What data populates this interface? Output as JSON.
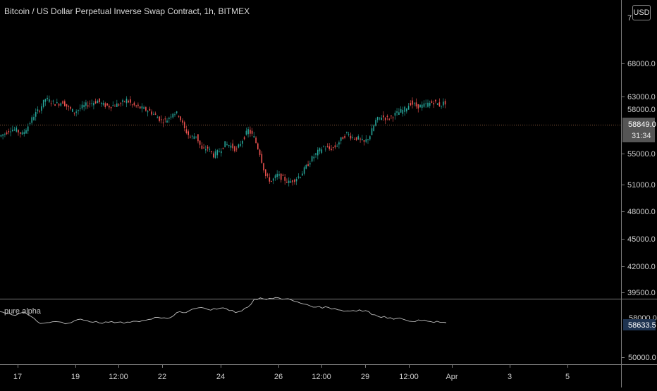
{
  "header": {
    "title": "Bitcoin / US Dollar Perpetual Inverse Swap Contract, 1h, BITMEX",
    "currency_button": "USD"
  },
  "indicator": {
    "label": "pure alpha"
  },
  "price_axis": {
    "ticks": [
      "68000.0",
      "63000.0",
      "58000.0",
      "55000.0",
      "51000.0",
      "48000.0",
      "45000.0",
      "42000.0",
      "39500.0"
    ],
    "top_partial": "7",
    "last_price": "58849.0",
    "countdown": "31:34"
  },
  "indicator_axis": {
    "top_partial": "58000.0",
    "value": "58633.5",
    "bottom_tick": "50000.0"
  },
  "time_axis": {
    "ticks": [
      "17",
      "19",
      "12:00",
      "22",
      "24",
      "26",
      "12:00",
      "29",
      "12:00",
      "Apr",
      "3",
      "5"
    ]
  },
  "colors": {
    "background": "#000000",
    "up": "#26a69a",
    "down": "#ef5350",
    "wick": "#8a8a8a",
    "indicator_line": "#bdbdbd",
    "last_price_line": "#8a5a3a",
    "price_label_bg": "#555555",
    "indicator_label_bg": "#1e3350"
  },
  "chart_data": {
    "type": "line",
    "title": "Bitcoin / US Dollar Perpetual Inverse Swap Contract, 1h, BITMEX",
    "series": [
      {
        "name": "BTCUSD",
        "values": [
          55600,
          55900,
          56300,
          56200,
          55800,
          56600,
          57600,
          58200,
          59200,
          58900,
          58700,
          58900,
          58300,
          57900,
          58300,
          58600,
          58800,
          59000,
          58600,
          58500,
          58600,
          58700,
          59100,
          58600,
          58400,
          58200,
          58000,
          57600,
          57100,
          57200,
          57900,
          57700,
          56300,
          55500,
          55700,
          54300,
          54500,
          53800,
          54200,
          54900,
          54700,
          54300,
          55300,
          56200,
          55500,
          54000,
          51800,
          51300,
          51900,
          51600,
          51200,
          51500,
          51900,
          52700,
          53500,
          54100,
          54600,
          54400,
          54600,
          55300,
          55900,
          55500,
          55400,
          55000,
          55700,
          57100,
          57500,
          57300,
          57600,
          57900,
          58200,
          58800,
          58500,
          58500,
          58700,
          58900,
          58600,
          58849
        ]
      },
      {
        "name": "pure alpha",
        "values": [
          55400,
          56000,
          56400,
          56000,
          55600,
          56800,
          58300,
          58800,
          58600,
          58300,
          58500,
          58800,
          58100,
          57600,
          58000,
          58500,
          58700,
          58400,
          58300,
          58500,
          58800,
          58500,
          58200,
          58000,
          57700,
          57100,
          57300,
          57400,
          56600,
          55400,
          55700,
          54700,
          54300,
          54400,
          55000,
          54700,
          54300,
          55100,
          55700,
          55200,
          54100,
          51800,
          51400,
          51900,
          51600,
          51400,
          51700,
          52000,
          52600,
          53200,
          53700,
          54100,
          54400,
          54200,
          54500,
          55000,
          55200,
          55100,
          54900,
          55100,
          56300,
          56800,
          56800,
          57200,
          57400,
          57600,
          58200,
          58300,
          58000,
          58200,
          58600,
          58500,
          58633.5
        ]
      }
    ],
    "price_axis_ticks": [
      68000,
      63000,
      58000,
      55000,
      51000,
      48000,
      45000,
      42000,
      39500
    ],
    "last_price": 58849.0,
    "grid": false
  }
}
